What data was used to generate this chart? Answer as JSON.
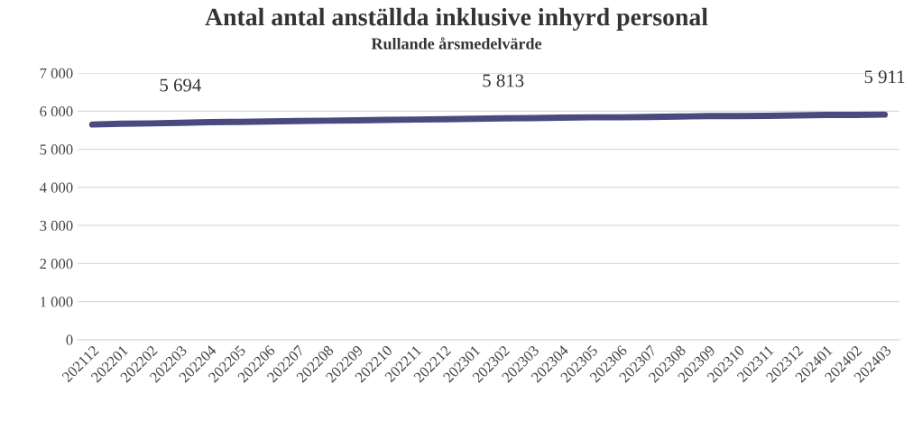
{
  "chart_data": {
    "type": "line",
    "title": "Antal antal anställda inklusive inhyrd personal",
    "subtitle": "Rullande årsmedelvärde",
    "categories": [
      "202112",
      "202201",
      "202202",
      "202203",
      "202204",
      "202205",
      "202206",
      "202207",
      "202208",
      "202209",
      "202210",
      "202211",
      "202212",
      "202301",
      "202302",
      "202303",
      "202304",
      "202305",
      "202306",
      "202307",
      "202308",
      "202309",
      "202310",
      "202311",
      "202312",
      "202401",
      "202402",
      "202403"
    ],
    "series": [
      {
        "color": "#4a4a7e",
        "values": [
          5650,
          5670,
          5680,
          5694,
          5710,
          5720,
          5730,
          5740,
          5750,
          5760,
          5770,
          5780,
          5790,
          5800,
          5813,
          5820,
          5830,
          5840,
          5840,
          5850,
          5860,
          5870,
          5870,
          5880,
          5890,
          5900,
          5900,
          5911
        ],
        "value_labels": [
          null,
          null,
          null,
          "5 694",
          null,
          null,
          null,
          null,
          null,
          null,
          null,
          null,
          null,
          null,
          "5 813",
          null,
          null,
          null,
          null,
          null,
          null,
          null,
          null,
          null,
          null,
          null,
          null,
          "5 911"
        ]
      }
    ],
    "ylim": [
      0,
      7000
    ],
    "yticks": [
      {
        "value": 0,
        "label": "0"
      },
      {
        "value": 1000,
        "label": "1 000"
      },
      {
        "value": 2000,
        "label": "2 000"
      },
      {
        "value": 3000,
        "label": "3 000"
      },
      {
        "value": 4000,
        "label": "4 000"
      },
      {
        "value": 5000,
        "label": "5 000"
      },
      {
        "value": 6000,
        "label": "6 000"
      },
      {
        "value": 7000,
        "label": "7 000"
      }
    ],
    "grid": "y",
    "legend": false,
    "marker": "none",
    "line_style": "solid"
  }
}
